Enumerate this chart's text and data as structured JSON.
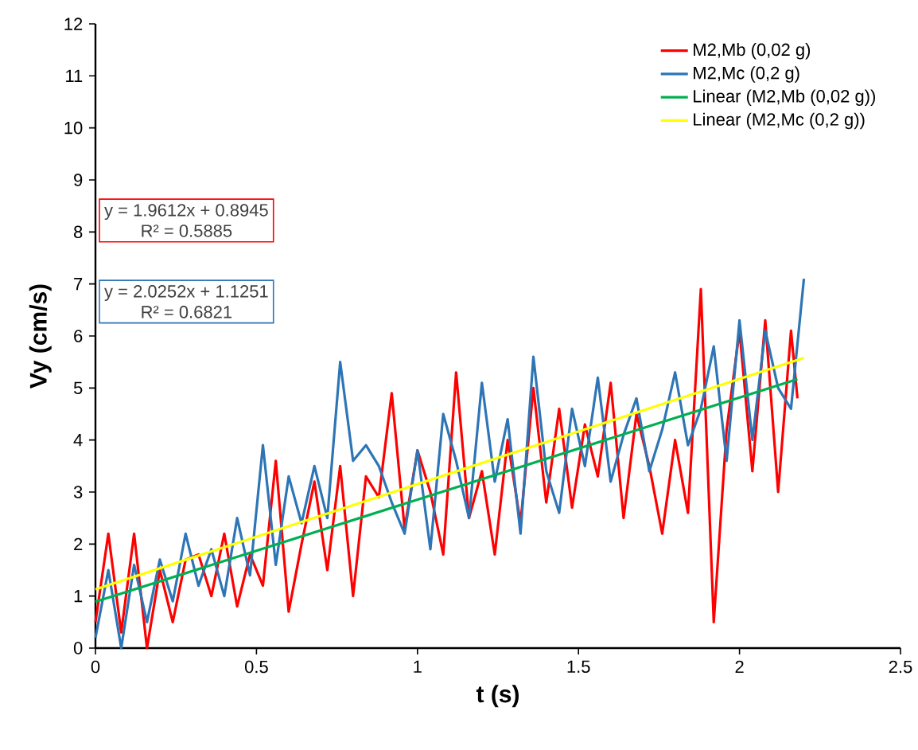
{
  "chart_data": {
    "type": "line",
    "xlabel": "t (s)",
    "ylabel": "Vy (cm/s)",
    "xlim": [
      0,
      2.5
    ],
    "ylim": [
      0,
      12
    ],
    "xticks": [
      0,
      0.5,
      1,
      1.5,
      2,
      2.5
    ],
    "yticks": [
      0,
      1,
      2,
      3,
      4,
      5,
      6,
      7,
      8,
      9,
      10,
      11,
      12
    ],
    "grid": false,
    "legend": "top right",
    "marker": "none",
    "line_style": "solid",
    "annotations": [
      "y = 1.9612x + 0.8945",
      "R² = 0.5885",
      "y = 2.0252x + 1.1251",
      "R² = 0.6821"
    ],
    "series": [
      {
        "name": "M2,Mb (0,02 g)",
        "color": "#ff0000",
        "x": [
          0,
          0.04,
          0.08,
          0.12,
          0.16,
          0.2,
          0.24,
          0.28,
          0.32,
          0.36,
          0.4,
          0.44,
          0.48,
          0.52,
          0.56,
          0.6,
          0.64,
          0.68,
          0.72,
          0.76,
          0.8,
          0.84,
          0.88,
          0.92,
          0.96,
          1.0,
          1.04,
          1.08,
          1.12,
          1.16,
          1.2,
          1.24,
          1.28,
          1.32,
          1.36,
          1.4,
          1.44,
          1.48,
          1.52,
          1.56,
          1.6,
          1.64,
          1.68,
          1.72,
          1.76,
          1.8,
          1.84,
          1.88,
          1.92,
          1.96,
          2.0,
          2.04,
          2.08,
          2.12,
          2.16,
          2.18
        ],
        "values": [
          0.5,
          2.2,
          0.3,
          2.2,
          0,
          1.5,
          0.5,
          1.7,
          1.8,
          1.0,
          2.2,
          0.8,
          1.8,
          1.2,
          3.6,
          0.7,
          2.0,
          3.2,
          1.5,
          3.5,
          1.0,
          3.3,
          2.9,
          4.9,
          2.3,
          3.8,
          3.0,
          1.8,
          5.3,
          2.5,
          3.4,
          1.8,
          4.0,
          2.4,
          5.0,
          2.8,
          4.6,
          2.7,
          4.3,
          3.3,
          5.1,
          2.5,
          4.5,
          3.5,
          2.2,
          4.0,
          2.6,
          6.9,
          0.5,
          4.2,
          6.1,
          3.4,
          6.3,
          3.0,
          6.1,
          4.8
        ]
      },
      {
        "name": "M2,Mc (0,2 g)",
        "color": "#2e75b6",
        "x": [
          0,
          0.04,
          0.08,
          0.12,
          0.16,
          0.2,
          0.24,
          0.28,
          0.32,
          0.36,
          0.4,
          0.44,
          0.48,
          0.52,
          0.56,
          0.6,
          0.64,
          0.68,
          0.72,
          0.76,
          0.8,
          0.84,
          0.88,
          0.92,
          0.96,
          1.0,
          1.04,
          1.08,
          1.12,
          1.16,
          1.2,
          1.24,
          1.28,
          1.32,
          1.36,
          1.4,
          1.44,
          1.48,
          1.52,
          1.56,
          1.6,
          1.64,
          1.68,
          1.72,
          1.76,
          1.8,
          1.84,
          1.88,
          1.92,
          1.96,
          2.0,
          2.04,
          2.08,
          2.12,
          2.16,
          2.2
        ],
        "values": [
          0.2,
          1.5,
          0,
          1.6,
          0.5,
          1.7,
          0.9,
          2.2,
          1.2,
          1.9,
          1.0,
          2.5,
          1.4,
          3.9,
          1.6,
          3.3,
          2.4,
          3.5,
          2.5,
          5.5,
          3.6,
          3.9,
          3.5,
          2.8,
          2.2,
          3.8,
          1.9,
          4.5,
          3.6,
          2.5,
          5.1,
          3.2,
          4.4,
          2.2,
          5.6,
          3.4,
          2.6,
          4.6,
          3.5,
          5.2,
          3.2,
          4.1,
          4.8,
          3.4,
          4.2,
          5.3,
          3.9,
          4.6,
          5.8,
          3.6,
          6.3,
          4.0,
          6.1,
          5.0,
          4.6,
          7.1
        ]
      },
      {
        "name": "Linear (M2,Mb (0,02 g))",
        "color": "#00b050",
        "x": [
          0,
          2.18
        ],
        "values": [
          0.89,
          5.17
        ]
      },
      {
        "name": "Linear (M2,Mc (0,2 g))",
        "color": "#ffff00",
        "x": [
          0,
          2.2
        ],
        "values": [
          1.13,
          5.58
        ]
      }
    ]
  }
}
